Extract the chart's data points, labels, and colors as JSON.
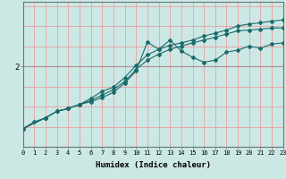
{
  "xlabel": "Humidex (Indice chaleur)",
  "background_color": "#cce8e5",
  "grid_color": "#e8a0a0",
  "hline_color": "#b09090",
  "line_color": "#1a6b6b",
  "x_ticks": [
    0,
    1,
    2,
    3,
    4,
    5,
    6,
    7,
    8,
    9,
    10,
    11,
    12,
    13,
    14,
    15,
    16,
    17,
    18,
    19,
    20,
    21,
    22,
    23
  ],
  "xlim": [
    0,
    23
  ],
  "ylim": [
    0.0,
    3.6
  ],
  "ytick_val": 2.0,
  "line1_x": [
    0,
    1,
    2,
    3,
    4,
    5,
    6,
    7,
    8,
    9,
    10,
    11,
    12,
    13,
    14,
    15,
    16,
    17,
    18,
    19,
    20,
    21,
    22,
    23
  ],
  "line1_y": [
    0.45,
    0.62,
    0.72,
    0.88,
    0.95,
    1.05,
    1.12,
    1.22,
    1.35,
    1.58,
    1.88,
    2.6,
    2.42,
    2.65,
    2.38,
    2.22,
    2.1,
    2.15,
    2.35,
    2.4,
    2.5,
    2.45,
    2.55,
    2.58
  ],
  "line2_x": [
    0,
    2,
    3,
    4,
    5,
    6,
    7,
    8,
    9,
    10,
    11,
    12,
    13,
    14,
    15,
    16,
    17,
    18,
    19,
    20,
    21,
    22,
    23
  ],
  "line2_y": [
    0.45,
    0.72,
    0.88,
    0.95,
    1.05,
    1.15,
    1.28,
    1.42,
    1.62,
    1.92,
    2.15,
    2.3,
    2.42,
    2.5,
    2.58,
    2.65,
    2.72,
    2.8,
    2.88,
    2.9,
    2.92,
    2.95,
    2.95
  ],
  "line3_x": [
    0,
    2,
    3,
    4,
    5,
    6,
    7,
    8,
    9,
    10,
    11,
    12,
    13,
    14,
    15,
    16,
    17,
    18,
    19,
    20,
    21,
    22,
    23
  ],
  "line3_y": [
    0.45,
    0.72,
    0.88,
    0.95,
    1.05,
    1.2,
    1.38,
    1.48,
    1.72,
    2.02,
    2.28,
    2.42,
    2.52,
    2.58,
    2.65,
    2.75,
    2.82,
    2.9,
    3.0,
    3.05,
    3.08,
    3.12,
    3.15
  ]
}
